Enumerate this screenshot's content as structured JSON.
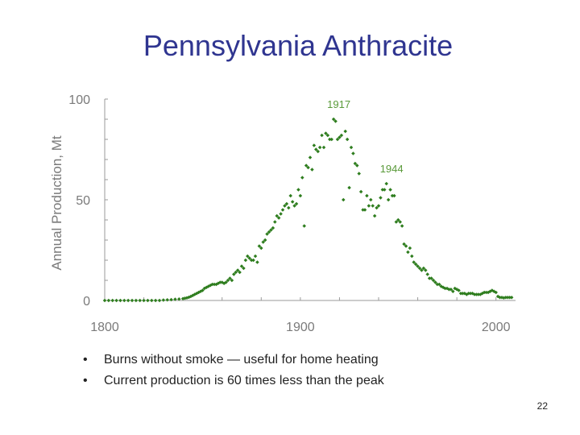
{
  "slide": {
    "title": "Pennsylvania Anthracite",
    "bullets": [
      "Burns without smoke — useful for home heating",
      "Current production is 60 times less than the peak"
    ],
    "page_number": "22"
  },
  "colors": {
    "title": "#2f3590",
    "series": "#2e7d1e",
    "axis_text": "#7a7a7a",
    "annotation": "#5a9a3a"
  },
  "chart_data": {
    "type": "scatter",
    "xlabel": "",
    "ylabel": "Annual Production, Mt",
    "xlim": [
      1800,
      2010
    ],
    "ylim": [
      0,
      100
    ],
    "x_ticks": [
      1800,
      1900,
      2000
    ],
    "y_ticks": [
      0,
      50,
      100
    ],
    "grid": false,
    "annotations": [
      {
        "text": "1917",
        "x": 1917,
        "y": 90
      },
      {
        "text": "1944",
        "x": 1944,
        "y": 58
      }
    ],
    "series": [
      {
        "points": [
          [
            1800,
            0
          ],
          [
            1802,
            0
          ],
          [
            1804,
            0
          ],
          [
            1806,
            0
          ],
          [
            1808,
            0
          ],
          [
            1810,
            0
          ],
          [
            1812,
            0
          ],
          [
            1814,
            0
          ],
          [
            1816,
            0
          ],
          [
            1818,
            0
          ],
          [
            1820,
            0
          ],
          [
            1822,
            0
          ],
          [
            1824,
            0
          ],
          [
            1826,
            0
          ],
          [
            1828,
            0
          ],
          [
            1830,
            0.2
          ],
          [
            1832,
            0.3
          ],
          [
            1834,
            0.4
          ],
          [
            1836,
            0.6
          ],
          [
            1838,
            0.7
          ],
          [
            1840,
            0.9
          ],
          [
            1841,
            1.1
          ],
          [
            1842,
            1.3
          ],
          [
            1843,
            1.6
          ],
          [
            1844,
            2
          ],
          [
            1845,
            2.5
          ],
          [
            1846,
            3
          ],
          [
            1847,
            3.5
          ],
          [
            1848,
            4
          ],
          [
            1849,
            4.5
          ],
          [
            1850,
            5
          ],
          [
            1851,
            6
          ],
          [
            1852,
            6.5
          ],
          [
            1853,
            7
          ],
          [
            1854,
            7.5
          ],
          [
            1855,
            8
          ],
          [
            1856,
            8
          ],
          [
            1857,
            8
          ],
          [
            1858,
            8.5
          ],
          [
            1859,
            9
          ],
          [
            1860,
            9
          ],
          [
            1861,
            8.5
          ],
          [
            1862,
            9
          ],
          [
            1863,
            10
          ],
          [
            1864,
            11
          ],
          [
            1865,
            10
          ],
          [
            1866,
            13
          ],
          [
            1867,
            14
          ],
          [
            1868,
            15
          ],
          [
            1869,
            14
          ],
          [
            1870,
            17
          ],
          [
            1871,
            16
          ],
          [
            1872,
            20
          ],
          [
            1873,
            22
          ],
          [
            1874,
            21
          ],
          [
            1875,
            20
          ],
          [
            1876,
            20
          ],
          [
            1877,
            22
          ],
          [
            1878,
            19
          ],
          [
            1879,
            27
          ],
          [
            1880,
            26
          ],
          [
            1881,
            29
          ],
          [
            1882,
            30
          ],
          [
            1883,
            33
          ],
          [
            1884,
            34
          ],
          [
            1885,
            35
          ],
          [
            1886,
            36
          ],
          [
            1887,
            39
          ],
          [
            1888,
            42
          ],
          [
            1889,
            41
          ],
          [
            1890,
            43
          ],
          [
            1891,
            45
          ],
          [
            1892,
            47
          ],
          [
            1893,
            48
          ],
          [
            1894,
            46
          ],
          [
            1895,
            52
          ],
          [
            1896,
            49
          ],
          [
            1897,
            47
          ],
          [
            1898,
            48
          ],
          [
            1899,
            55
          ],
          [
            1900,
            52
          ],
          [
            1901,
            61
          ],
          [
            1902,
            37
          ],
          [
            1903,
            67
          ],
          [
            1904,
            66
          ],
          [
            1905,
            71
          ],
          [
            1906,
            65
          ],
          [
            1907,
            77
          ],
          [
            1908,
            75
          ],
          [
            1909,
            74
          ],
          [
            1910,
            76
          ],
          [
            1911,
            82
          ],
          [
            1912,
            76
          ],
          [
            1913,
            83
          ],
          [
            1914,
            82
          ],
          [
            1915,
            80
          ],
          [
            1916,
            80
          ],
          [
            1917,
            90
          ],
          [
            1918,
            89
          ],
          [
            1919,
            80
          ],
          [
            1920,
            81
          ],
          [
            1921,
            82
          ],
          [
            1922,
            50
          ],
          [
            1923,
            84
          ],
          [
            1924,
            80
          ],
          [
            1925,
            56
          ],
          [
            1926,
            76
          ],
          [
            1927,
            73
          ],
          [
            1928,
            68
          ],
          [
            1929,
            67
          ],
          [
            1930,
            63
          ],
          [
            1931,
            54
          ],
          [
            1932,
            45
          ],
          [
            1933,
            45
          ],
          [
            1934,
            52
          ],
          [
            1935,
            47
          ],
          [
            1936,
            50
          ],
          [
            1937,
            47
          ],
          [
            1938,
            42
          ],
          [
            1939,
            46
          ],
          [
            1940,
            47
          ],
          [
            1941,
            51
          ],
          [
            1942,
            55
          ],
          [
            1943,
            55
          ],
          [
            1944,
            58
          ],
          [
            1945,
            50
          ],
          [
            1946,
            55
          ],
          [
            1947,
            52
          ],
          [
            1948,
            52
          ],
          [
            1949,
            39
          ],
          [
            1950,
            40
          ],
          [
            1951,
            39
          ],
          [
            1952,
            37
          ],
          [
            1953,
            28
          ],
          [
            1954,
            27
          ],
          [
            1955,
            24
          ],
          [
            1956,
            26
          ],
          [
            1957,
            22
          ],
          [
            1958,
            19
          ],
          [
            1959,
            18
          ],
          [
            1960,
            17
          ],
          [
            1961,
            16
          ],
          [
            1962,
            15
          ],
          [
            1963,
            16
          ],
          [
            1964,
            15
          ],
          [
            1965,
            13
          ],
          [
            1966,
            11
          ],
          [
            1967,
            11
          ],
          [
            1968,
            10
          ],
          [
            1969,
            9
          ],
          [
            1970,
            8
          ],
          [
            1971,
            8
          ],
          [
            1972,
            7
          ],
          [
            1973,
            6.5
          ],
          [
            1974,
            6
          ],
          [
            1975,
            6
          ],
          [
            1976,
            5.5
          ],
          [
            1977,
            5.5
          ],
          [
            1978,
            4.5
          ],
          [
            1979,
            6
          ],
          [
            1980,
            5.5
          ],
          [
            1981,
            5
          ],
          [
            1982,
            3.5
          ],
          [
            1983,
            3.5
          ],
          [
            1984,
            3.5
          ],
          [
            1985,
            3
          ],
          [
            1986,
            3.5
          ],
          [
            1987,
            3.5
          ],
          [
            1988,
            3.5
          ],
          [
            1989,
            3
          ],
          [
            1990,
            3
          ],
          [
            1991,
            3
          ],
          [
            1992,
            3
          ],
          [
            1993,
            3.5
          ],
          [
            1994,
            4
          ],
          [
            1995,
            4
          ],
          [
            1996,
            4
          ],
          [
            1997,
            4.5
          ],
          [
            1998,
            5
          ],
          [
            1999,
            4.5
          ],
          [
            2000,
            4
          ],
          [
            2001,
            2
          ],
          [
            2002,
            1.5
          ],
          [
            2003,
            1.5
          ],
          [
            2004,
            1.3
          ],
          [
            2005,
            1.5
          ],
          [
            2006,
            1.5
          ],
          [
            2007,
            1.5
          ],
          [
            2008,
            1.5
          ]
        ]
      }
    ]
  }
}
